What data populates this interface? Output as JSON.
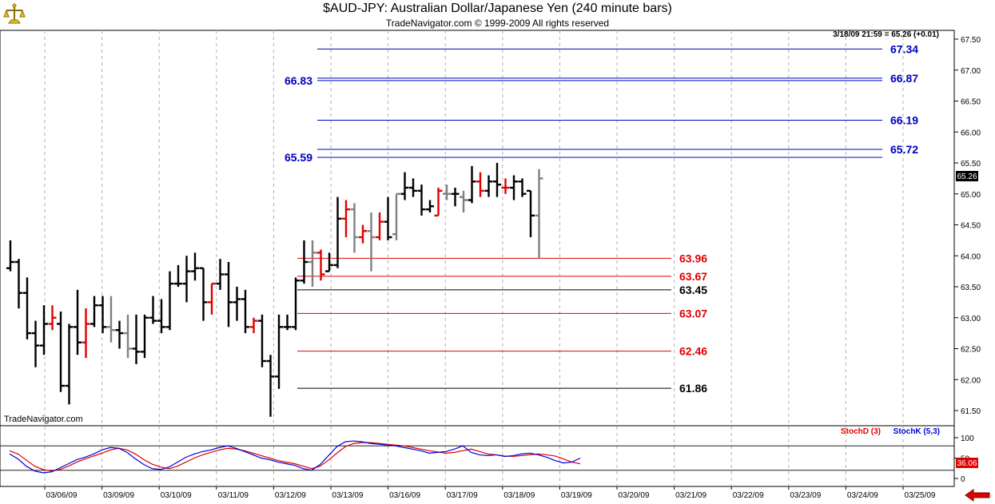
{
  "header": {
    "title": "$AUD-JPY:  Australian Dollar/Japanese Yen  (240 minute bars)",
    "subtitle": "TradeNavigator.com © 1999-2009 All rights reserved",
    "watermark": "TradeNavigator.com"
  },
  "readout": "3/18/09 21:59 = 65.26 (+0.01)",
  "current_price_label": "65.26",
  "colors": {
    "bar_up": "#000000",
    "bar_gray": "#808080",
    "bar_red": "#e00000",
    "fib_blue": "#0000c0",
    "fib_red": "#e00000",
    "stoch_d": "#e00000",
    "stoch_k": "#0000e0",
    "grid": "#b0b0b0"
  },
  "chart_data": [
    {
      "type": "ohlc",
      "title": "$AUD-JPY:  Australian Dollar/Japanese Yen  (240 minute bars)",
      "ylim": [
        61.35,
        67.6
      ],
      "y_ticks": [
        "61.50",
        "62.00",
        "62.50",
        "63.00",
        "63.50",
        "64.00",
        "64.50",
        "65.00",
        "65.50",
        "66.00",
        "66.50",
        "67.00",
        "67.50"
      ],
      "x_ticks": [
        "03/06/09",
        "03/09/09",
        "03/10/09",
        "03/11/09",
        "03/12/09",
        "03/13/09",
        "03/16/09",
        "03/17/09",
        "03/18/09",
        "03/19/09",
        "03/20/09",
        "03/21/09",
        "03/22/09",
        "03/23/09",
        "03/24/09",
        "03/25/09"
      ],
      "bars": [
        {
          "o": 63.8,
          "h": 64.25,
          "l": 63.75,
          "c": 63.9,
          "color": "black"
        },
        {
          "o": 63.9,
          "h": 63.95,
          "l": 63.15,
          "c": 63.4,
          "color": "black"
        },
        {
          "o": 63.4,
          "h": 63.65,
          "l": 62.65,
          "c": 62.75,
          "color": "black"
        },
        {
          "o": 62.75,
          "h": 62.95,
          "l": 62.2,
          "c": 62.55,
          "color": "black"
        },
        {
          "o": 62.55,
          "h": 63.2,
          "l": 62.4,
          "c": 62.9,
          "color": "black"
        },
        {
          "o": 62.9,
          "h": 63.2,
          "l": 62.8,
          "c": 63.0,
          "color": "red"
        },
        {
          "o": 62.9,
          "h": 63.1,
          "l": 61.8,
          "c": 61.9,
          "color": "black"
        },
        {
          "o": 61.9,
          "h": 62.9,
          "l": 61.6,
          "c": 62.85,
          "color": "black"
        },
        {
          "o": 62.85,
          "h": 63.45,
          "l": 62.4,
          "c": 62.6,
          "color": "black"
        },
        {
          "o": 62.6,
          "h": 63.15,
          "l": 62.35,
          "c": 62.9,
          "color": "red"
        },
        {
          "o": 62.9,
          "h": 63.35,
          "l": 62.85,
          "c": 63.2,
          "color": "black"
        },
        {
          "o": 63.2,
          "h": 63.35,
          "l": 62.75,
          "c": 62.85,
          "color": "black"
        },
        {
          "o": 62.85,
          "h": 63.35,
          "l": 62.6,
          "c": 62.8,
          "color": "gray"
        },
        {
          "o": 62.8,
          "h": 62.95,
          "l": 62.5,
          "c": 62.75,
          "color": "black"
        },
        {
          "o": 62.75,
          "h": 63.05,
          "l": 62.35,
          "c": 62.5,
          "color": "gray"
        },
        {
          "o": 62.5,
          "h": 63.05,
          "l": 62.25,
          "c": 62.45,
          "color": "black"
        },
        {
          "o": 62.45,
          "h": 63.05,
          "l": 62.35,
          "c": 63.0,
          "color": "black"
        },
        {
          "o": 63.0,
          "h": 63.35,
          "l": 62.9,
          "c": 62.95,
          "color": "black"
        },
        {
          "o": 62.95,
          "h": 63.3,
          "l": 62.75,
          "c": 62.85,
          "color": "black"
        },
        {
          "o": 62.85,
          "h": 63.75,
          "l": 62.8,
          "c": 63.55,
          "color": "black"
        },
        {
          "o": 63.55,
          "h": 63.85,
          "l": 63.5,
          "c": 63.55,
          "color": "black"
        },
        {
          "o": 63.55,
          "h": 64.0,
          "l": 63.25,
          "c": 63.75,
          "color": "black"
        },
        {
          "o": 63.75,
          "h": 64.05,
          "l": 63.6,
          "c": 63.8,
          "color": "black"
        },
        {
          "o": 63.8,
          "h": 63.8,
          "l": 62.95,
          "c": 63.25,
          "color": "black"
        },
        {
          "o": 63.25,
          "h": 63.55,
          "l": 63.05,
          "c": 63.55,
          "color": "red"
        },
        {
          "o": 63.55,
          "h": 63.95,
          "l": 63.45,
          "c": 63.7,
          "color": "black"
        },
        {
          "o": 63.7,
          "h": 63.9,
          "l": 62.85,
          "c": 63.25,
          "color": "black"
        },
        {
          "o": 63.25,
          "h": 63.5,
          "l": 62.95,
          "c": 63.3,
          "color": "black"
        },
        {
          "o": 63.3,
          "h": 63.45,
          "l": 62.75,
          "c": 62.85,
          "color": "black"
        },
        {
          "o": 62.85,
          "h": 63.0,
          "l": 62.75,
          "c": 62.95,
          "color": "red"
        },
        {
          "o": 62.95,
          "h": 63.05,
          "l": 62.2,
          "c": 62.3,
          "color": "black"
        },
        {
          "o": 62.3,
          "h": 62.4,
          "l": 61.4,
          "c": 62.05,
          "color": "black"
        },
        {
          "o": 62.05,
          "h": 63.05,
          "l": 61.85,
          "c": 62.85,
          "color": "black"
        },
        {
          "o": 62.85,
          "h": 63.05,
          "l": 62.8,
          "c": 62.85,
          "color": "black"
        },
        {
          "o": 62.85,
          "h": 63.65,
          "l": 62.8,
          "c": 63.6,
          "color": "black"
        },
        {
          "o": 63.6,
          "h": 64.25,
          "l": 63.55,
          "c": 63.9,
          "color": "black"
        },
        {
          "o": 63.9,
          "h": 64.25,
          "l": 63.5,
          "c": 64.05,
          "color": "gray"
        },
        {
          "o": 64.05,
          "h": 64.1,
          "l": 63.6,
          "c": 63.7,
          "color": "red"
        },
        {
          "o": 63.75,
          "h": 64.05,
          "l": 63.75,
          "c": 63.85,
          "color": "black"
        },
        {
          "o": 63.85,
          "h": 64.95,
          "l": 63.8,
          "c": 64.6,
          "color": "black"
        },
        {
          "o": 64.6,
          "h": 64.9,
          "l": 64.3,
          "c": 64.75,
          "color": "red"
        },
        {
          "o": 64.75,
          "h": 64.85,
          "l": 64.05,
          "c": 64.3,
          "color": "gray"
        },
        {
          "o": 64.3,
          "h": 64.5,
          "l": 64.2,
          "c": 64.4,
          "color": "red"
        },
        {
          "o": 64.4,
          "h": 64.7,
          "l": 63.75,
          "c": 64.3,
          "color": "gray"
        },
        {
          "o": 64.3,
          "h": 64.7,
          "l": 64.25,
          "c": 64.55,
          "color": "red"
        },
        {
          "o": 64.55,
          "h": 64.95,
          "l": 64.25,
          "c": 64.3,
          "color": "black"
        },
        {
          "o": 64.35,
          "h": 65.0,
          "l": 64.25,
          "c": 65.0,
          "color": "gray"
        },
        {
          "o": 65.0,
          "h": 65.35,
          "l": 64.9,
          "c": 65.1,
          "color": "black"
        },
        {
          "o": 65.1,
          "h": 65.25,
          "l": 64.95,
          "c": 65.05,
          "color": "black"
        },
        {
          "o": 65.05,
          "h": 65.15,
          "l": 64.65,
          "c": 64.75,
          "color": "black"
        },
        {
          "o": 64.75,
          "h": 64.9,
          "l": 64.7,
          "c": 64.8,
          "color": "black"
        },
        {
          "o": 64.65,
          "h": 65.1,
          "l": 64.65,
          "c": 65.05,
          "color": "red"
        },
        {
          "o": 65.0,
          "h": 65.15,
          "l": 64.9,
          "c": 65.0,
          "color": "gray"
        },
        {
          "o": 65.0,
          "h": 65.1,
          "l": 64.8,
          "c": 65.0,
          "color": "black"
        },
        {
          "o": 64.95,
          "h": 65.05,
          "l": 64.7,
          "c": 64.9,
          "color": "gray"
        },
        {
          "o": 64.9,
          "h": 65.45,
          "l": 64.85,
          "c": 65.2,
          "color": "black"
        },
        {
          "o": 65.2,
          "h": 65.35,
          "l": 64.95,
          "c": 65.05,
          "color": "red"
        },
        {
          "o": 65.05,
          "h": 65.3,
          "l": 64.95,
          "c": 65.2,
          "color": "black"
        },
        {
          "o": 65.2,
          "h": 65.5,
          "l": 64.95,
          "c": 65.15,
          "color": "black"
        },
        {
          "o": 65.1,
          "h": 65.25,
          "l": 65.0,
          "c": 65.1,
          "color": "red"
        },
        {
          "o": 65.1,
          "h": 65.3,
          "l": 64.9,
          "c": 65.2,
          "color": "black"
        },
        {
          "o": 65.2,
          "h": 65.25,
          "l": 64.95,
          "c": 65.0,
          "color": "black"
        },
        {
          "o": 65.05,
          "h": 65.05,
          "l": 64.3,
          "c": 64.65,
          "color": "black"
        },
        {
          "o": 64.65,
          "h": 65.4,
          "l": 63.95,
          "c": 65.25,
          "color": "gray"
        }
      ],
      "fib_levels": [
        {
          "label": "67.34",
          "value": 67.34,
          "color": "blue"
        },
        {
          "label": "66.87",
          "value": 66.87,
          "color": "blue"
        },
        {
          "label": "66.83",
          "value": 66.83,
          "color": "blue"
        },
        {
          "label": "66.19",
          "value": 66.19,
          "color": "blue"
        },
        {
          "label": "65.72",
          "value": 65.72,
          "color": "blue"
        },
        {
          "label": "65.59",
          "value": 65.59,
          "color": "blue"
        },
        {
          "label": "63.96",
          "value": 63.96,
          "color": "red"
        },
        {
          "label": "63.67",
          "value": 63.67,
          "color": "red"
        },
        {
          "label": "63.45",
          "value": 63.45,
          "color": "black"
        },
        {
          "label": "63.07",
          "value": 63.07,
          "color": "red"
        },
        {
          "label": "62.46",
          "value": 62.46,
          "color": "red"
        },
        {
          "label": "61.86",
          "value": 61.86,
          "color": "black"
        }
      ]
    },
    {
      "type": "line",
      "legend": [
        "StochD (3)",
        "StochK (5,3)"
      ],
      "ylim": [
        -5,
        112
      ],
      "y_ticks": [
        "0",
        "50",
        "100"
      ],
      "guides": [
        20,
        80
      ],
      "current_value": "36.06",
      "series": [
        {
          "name": "StochD (3)",
          "values": [
            68,
            60,
            45,
            30,
            22,
            18,
            22,
            30,
            40,
            48,
            55,
            62,
            70,
            74,
            70,
            60,
            46,
            35,
            28,
            24,
            30,
            40,
            50,
            58,
            64,
            70,
            74,
            72,
            68,
            62,
            56,
            50,
            44,
            40,
            36,
            30,
            24,
            30,
            45,
            62,
            78,
            86,
            88,
            88,
            86,
            84,
            82,
            80,
            76,
            72,
            68,
            65,
            62,
            64,
            68,
            72,
            66,
            60,
            58,
            55,
            54,
            56,
            58,
            60,
            58,
            55,
            48,
            40,
            36
          ]
        },
        {
          "name": "StochK (5,3)",
          "values": [
            60,
            48,
            30,
            18,
            14,
            16,
            26,
            36,
            46,
            52,
            60,
            70,
            76,
            74,
            64,
            48,
            34,
            24,
            22,
            28,
            40,
            52,
            60,
            66,
            70,
            76,
            80,
            74,
            66,
            58,
            50,
            46,
            40,
            36,
            32,
            24,
            20,
            34,
            56,
            78,
            90,
            92,
            90,
            86,
            84,
            82,
            80,
            76,
            72,
            68,
            62,
            64,
            66,
            72,
            80,
            64,
            58,
            56,
            58,
            54,
            56,
            60,
            62,
            58,
            52,
            44,
            38,
            40,
            50
          ]
        }
      ]
    }
  ]
}
